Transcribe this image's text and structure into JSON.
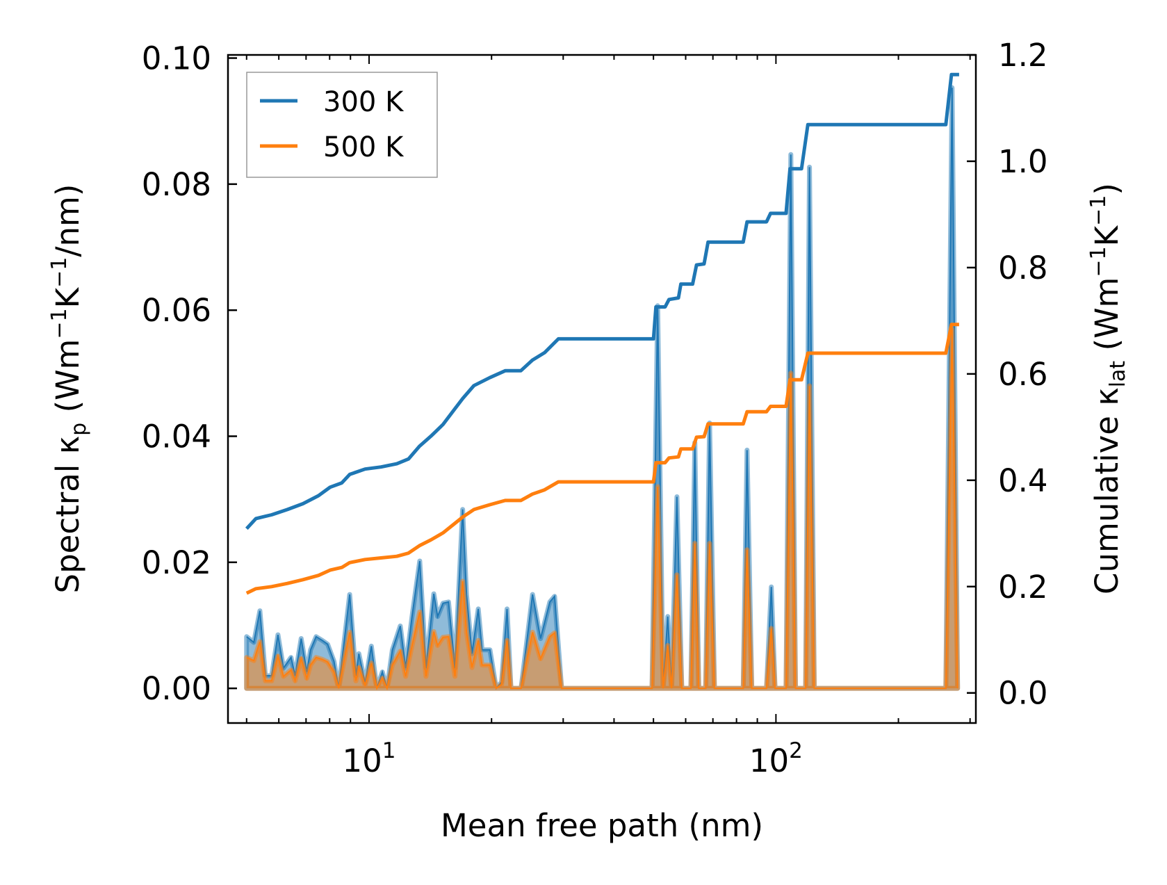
{
  "chart_data": {
    "type": "line",
    "xscale": "log",
    "xlabel": "Mean free path (nm)",
    "ylabel": {
      "prefix": "Spectral κ",
      "sub": "p",
      "mid1": " (Wm",
      "sup1": "−1",
      "mid2": "K",
      "sup2": "−1",
      "suffix": "/nm)"
    },
    "y2label": {
      "prefix": "Cumulative κ",
      "sub": "lat",
      "mid1": " (Wm",
      "sup1": "−1",
      "mid2": "K",
      "sup2": "−1",
      "suffix": ")"
    },
    "xlim": [
      4.5,
      310
    ],
    "ylim": [
      -0.0055,
      0.1005
    ],
    "y2lim": [
      -0.0566,
      1.2
    ],
    "xticks": [
      {
        "base": "10",
        "exp": "1",
        "value": 10
      },
      {
        "base": "10",
        "exp": "2",
        "value": 100
      }
    ],
    "yticks": [
      "0.00",
      "0.02",
      "0.04",
      "0.06",
      "0.08",
      "0.10"
    ],
    "y2ticks": [
      "0.0",
      "0.2",
      "0.4",
      "0.6",
      "0.8",
      "1.0",
      "1.2"
    ],
    "legend": {
      "placement": "upper-left",
      "entries": [
        "300 K",
        "500 K"
      ]
    },
    "colors": {
      "300K": "#1f77b4",
      "500K": "#ff7f0e"
    },
    "spectral": {
      "x": [
        5.0,
        5.21,
        5.39,
        5.56,
        5.76,
        5.97,
        6.16,
        6.43,
        6.58,
        6.81,
        7.03,
        7.18,
        7.41,
        7.67,
        7.91,
        8.2,
        8.42,
        8.96,
        9.28,
        9.44,
        9.78,
        10.13,
        10.45,
        10.78,
        11.07,
        11.41,
        11.93,
        12.3,
        12.75,
        13.32,
        13.8,
        14.42,
        14.74,
        15.2,
        15.68,
        16.26,
        16.98,
        17.36,
        17.9,
        18.55,
        18.96,
        19.82,
        20.53,
        21.17,
        21.83,
        22.32,
        23.64,
        25.22,
        26.39,
        27.82,
        28.57,
        29.73,
        49.6,
        51.2,
        52.8,
        54.2,
        55.4,
        57.1,
        58.7,
        61.8,
        63.2,
        64.6,
        67.2,
        68.7,
        70.6,
        83.1,
        84.9,
        87.2,
        94.8,
        97.4,
        99.5,
        105.9,
        108.8,
        111.7,
        118.3,
        120.9,
        124.2,
        261.6,
        271.0,
        279.5
      ],
      "series": [
        {
          "name": "300 K",
          "values": [
            0.0082,
            0.0073,
            0.0123,
            0.002,
            0.002,
            0.0085,
            0.0032,
            0.0049,
            0.002,
            0.0079,
            0.0026,
            0.0061,
            0.0082,
            0.0076,
            0.007,
            0.0043,
            0,
            0.0149,
            0.002,
            0.0055,
            0.0008,
            0.0067,
            0,
            0.0026,
            0,
            0.0061,
            0.0099,
            0.0032,
            0.0114,
            0.0202,
            0.0032,
            0.015,
            0.0114,
            0.0135,
            0.0137,
            0.0032,
            0.0284,
            0.0149,
            0.0055,
            0.0126,
            0.0061,
            0.0061,
            0,
            0.001,
            0.0126,
            0,
            0,
            0.0149,
            0.0079,
            0.0137,
            0.0146,
            0,
            0,
            0.0607,
            0,
            0.0114,
            0,
            0.0304,
            0,
            0,
            0.039,
            0,
            0,
            0.0421,
            0,
            0,
            0.0378,
            0,
            0,
            0.0161,
            0,
            0,
            0.0847,
            0,
            0,
            0.0827,
            0,
            0,
            0.0953,
            0
          ]
        },
        {
          "name": "500 K",
          "values": [
            0.0049,
            0.0044,
            0.0074,
            0.0012,
            0.0012,
            0.0051,
            0.0019,
            0.0029,
            0.0012,
            0.0047,
            0.0016,
            0.0037,
            0.0049,
            0.0046,
            0.0042,
            0.0026,
            0,
            0.0089,
            0.0012,
            0.0033,
            0.0005,
            0.004,
            0,
            0.0016,
            0,
            0.0037,
            0.0059,
            0.0019,
            0.0068,
            0.0121,
            0.0019,
            0.009,
            0.0068,
            0.0081,
            0.0082,
            0.0019,
            0.017,
            0.0089,
            0.0033,
            0.0076,
            0.0037,
            0.0037,
            0,
            0.0006,
            0.0076,
            0,
            0,
            0.0089,
            0.0047,
            0.0082,
            0.0088,
            0,
            0,
            0.032,
            0,
            0.0068,
            0,
            0.018,
            0,
            0,
            0.023,
            0,
            0,
            0.023,
            0,
            0,
            0.022,
            0,
            0,
            0.0095,
            0,
            0,
            0.05,
            0,
            0,
            0.048,
            0,
            0,
            0.057,
            0
          ]
        }
      ]
    },
    "cumulative": {
      "x": [
        5.0,
        5.27,
        5.76,
        6.3,
        6.88,
        7.51,
        8.02,
        8.57,
        8.96,
        9.78,
        10.7,
        11.7,
        12.5,
        13.3,
        14.2,
        15.2,
        16.2,
        17.0,
        18.1,
        19.8,
        21.6,
        23.6,
        25.2,
        27.0,
        29.2,
        50.0,
        50.7,
        53.4,
        54.6,
        57.6,
        58.4,
        62.4,
        63.8,
        66.6,
        68.1,
        83.1,
        84.9,
        94.8,
        97.0,
        105.9,
        108.3,
        115.6,
        119.8,
        261.6,
        270,
        282
      ],
      "series": [
        {
          "name": "300 K",
          "values": [
            0.309,
            0.328,
            0.335,
            0.345,
            0.356,
            0.371,
            0.387,
            0.395,
            0.411,
            0.421,
            0.425,
            0.431,
            0.44,
            0.464,
            0.483,
            0.505,
            0.533,
            0.554,
            0.578,
            0.593,
            0.606,
            0.606,
            0.626,
            0.64,
            0.666,
            0.666,
            0.726,
            0.726,
            0.74,
            0.743,
            0.769,
            0.769,
            0.805,
            0.807,
            0.848,
            0.848,
            0.886,
            0.886,
            0.902,
            0.902,
            0.986,
            0.986,
            1.069,
            1.069,
            1.163,
            1.163
          ]
        },
        {
          "name": "500 K",
          "values": [
            0.1875,
            0.196,
            0.2,
            0.206,
            0.213,
            0.221,
            0.231,
            0.236,
            0.245,
            0.251,
            0.254,
            0.257,
            0.263,
            0.277,
            0.288,
            0.301,
            0.318,
            0.331,
            0.345,
            0.354,
            0.362,
            0.362,
            0.374,
            0.382,
            0.397,
            0.397,
            0.433,
            0.433,
            0.442,
            0.444,
            0.459,
            0.459,
            0.481,
            0.482,
            0.506,
            0.506,
            0.529,
            0.529,
            0.539,
            0.539,
            0.589,
            0.589,
            0.639,
            0.639,
            0.693,
            0.693
          ]
        }
      ]
    }
  }
}
